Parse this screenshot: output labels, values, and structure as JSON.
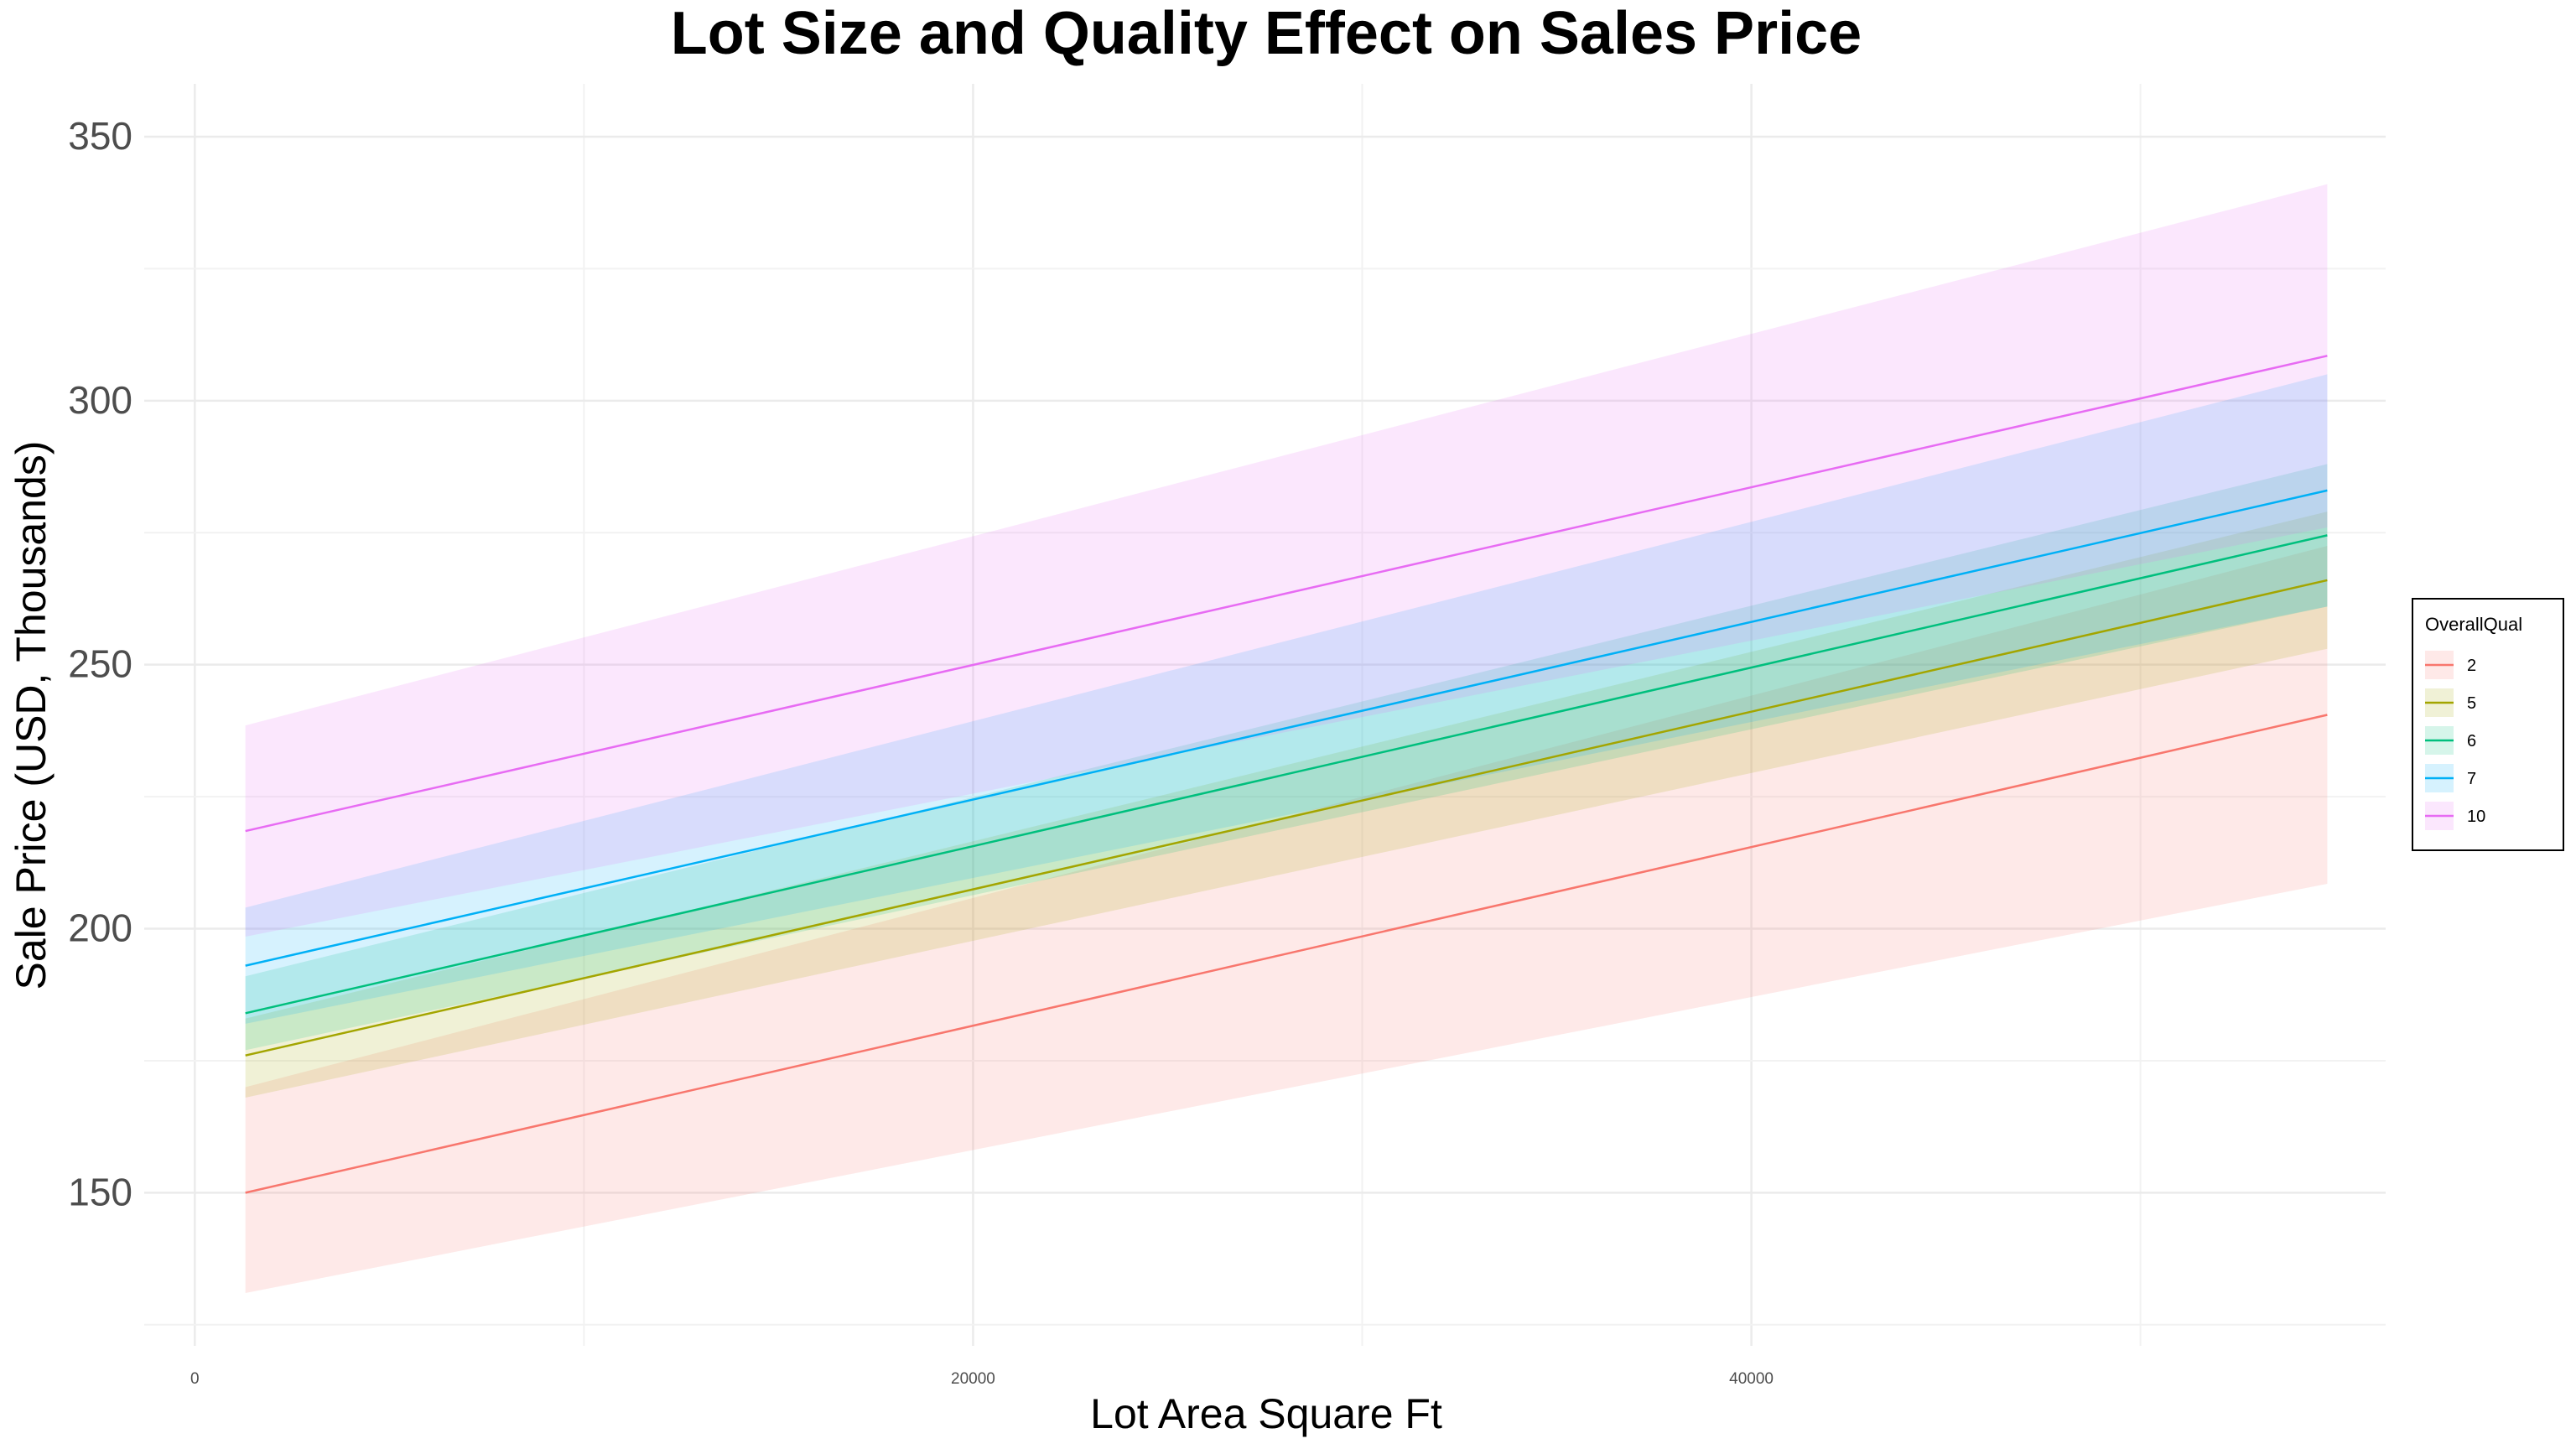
{
  "chart_data": {
    "type": "line",
    "title": "Lot Size and Quality Effect on Sales Price",
    "xlabel": "Lot Area Square Ft",
    "ylabel": "Sale Price (USD, Thousands)",
    "xlim": [
      -1300,
      56300
    ],
    "ylim": [
      121,
      360
    ],
    "x_ticks": [
      0,
      20000,
      40000
    ],
    "x_tick_labels": [
      "0",
      "20000",
      "40000"
    ],
    "y_ticks": [
      150,
      200,
      250,
      300,
      350
    ],
    "y_tick_labels": [
      "150",
      "200",
      "250",
      "300",
      "350"
    ],
    "grid": true,
    "legend": {
      "title": "OverallQual",
      "position": "right"
    },
    "x": [
      1300,
      54800
    ],
    "series": [
      {
        "name": "2",
        "color": "#F8766D",
        "fill": "#FFE4E1",
        "values": [
          150,
          240.5
        ],
        "lower": [
          131,
          208.5
        ],
        "upper": [
          170,
          272.5
        ]
      },
      {
        "name": "5",
        "color": "#A3A500",
        "fill": "#EEF5C8",
        "values": [
          176,
          266
        ],
        "lower": [
          168,
          253
        ],
        "upper": [
          183,
          279
        ]
      },
      {
        "name": "6",
        "color": "#00BF7D",
        "fill": "#D3F4E3",
        "values": [
          184,
          274.5
        ],
        "lower": [
          177,
          261
        ],
        "upper": [
          191,
          288
        ]
      },
      {
        "name": "7",
        "color": "#00B0F6",
        "fill": "#D2F4F8",
        "values": [
          193,
          283
        ],
        "lower": [
          182,
          261
        ],
        "upper": [
          204,
          305
        ]
      },
      {
        "name": "10",
        "color": "#E76BF3",
        "fill": "#FBEAFD",
        "values": [
          218.5,
          308.5
        ],
        "lower": [
          198.5,
          276
        ],
        "upper": [
          238.5,
          341
        ]
      }
    ]
  }
}
